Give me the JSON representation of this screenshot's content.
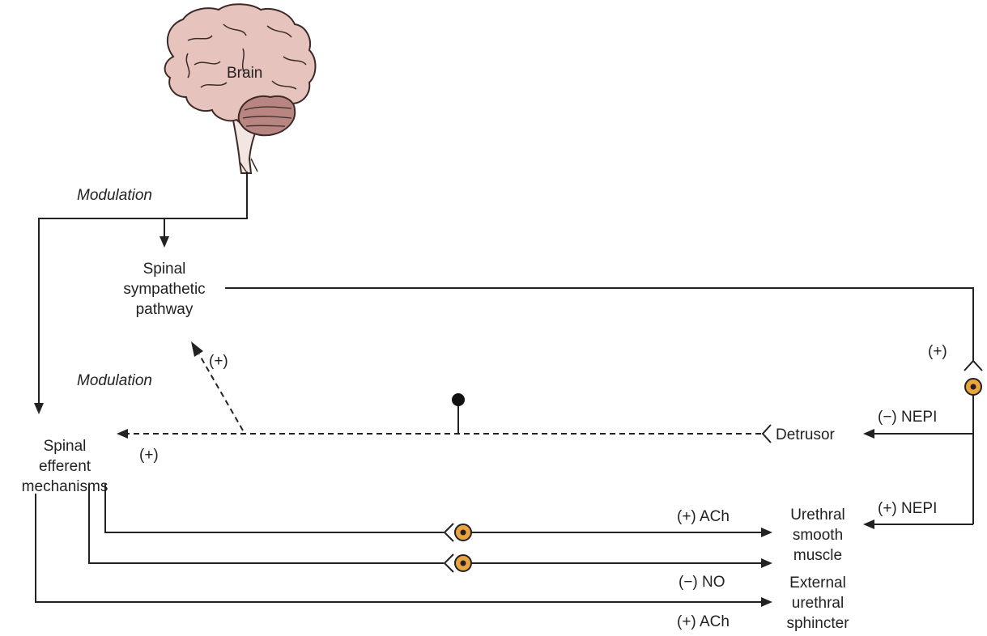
{
  "labels": {
    "brain": "Brain",
    "modulation_top": "Modulation",
    "modulation_mid": "Modulation",
    "spinal_sympathetic": [
      "Spinal",
      "sympathetic",
      "pathway"
    ],
    "spinal_efferent": [
      "Spinal",
      "efferent",
      "mechanisms"
    ],
    "plus_dashed": "(+)",
    "plus_efferent": "(+)",
    "plus_right": "(+)",
    "detrusor": "Detrusor",
    "minus_nepi": "(−) NEPI",
    "plus_ach_1": "(+) ACh",
    "plus_nepi": "(+) NEPI",
    "urethral_smooth_muscle": [
      "Urethral",
      "smooth",
      "muscle"
    ],
    "minus_no": "(−) NO",
    "external_urethral_sphincter": [
      "External",
      "urethral",
      "sphincter"
    ],
    "plus_ach_2": "(+) ACh"
  },
  "colors": {
    "brain_fill": "#e6c4bd",
    "brain_stroke": "#3b2a28",
    "cerebellum_fill": "#b88580",
    "stem_fill": "#f3e6e2",
    "ganglion_fill": "#e9a440",
    "line": "#222222"
  }
}
